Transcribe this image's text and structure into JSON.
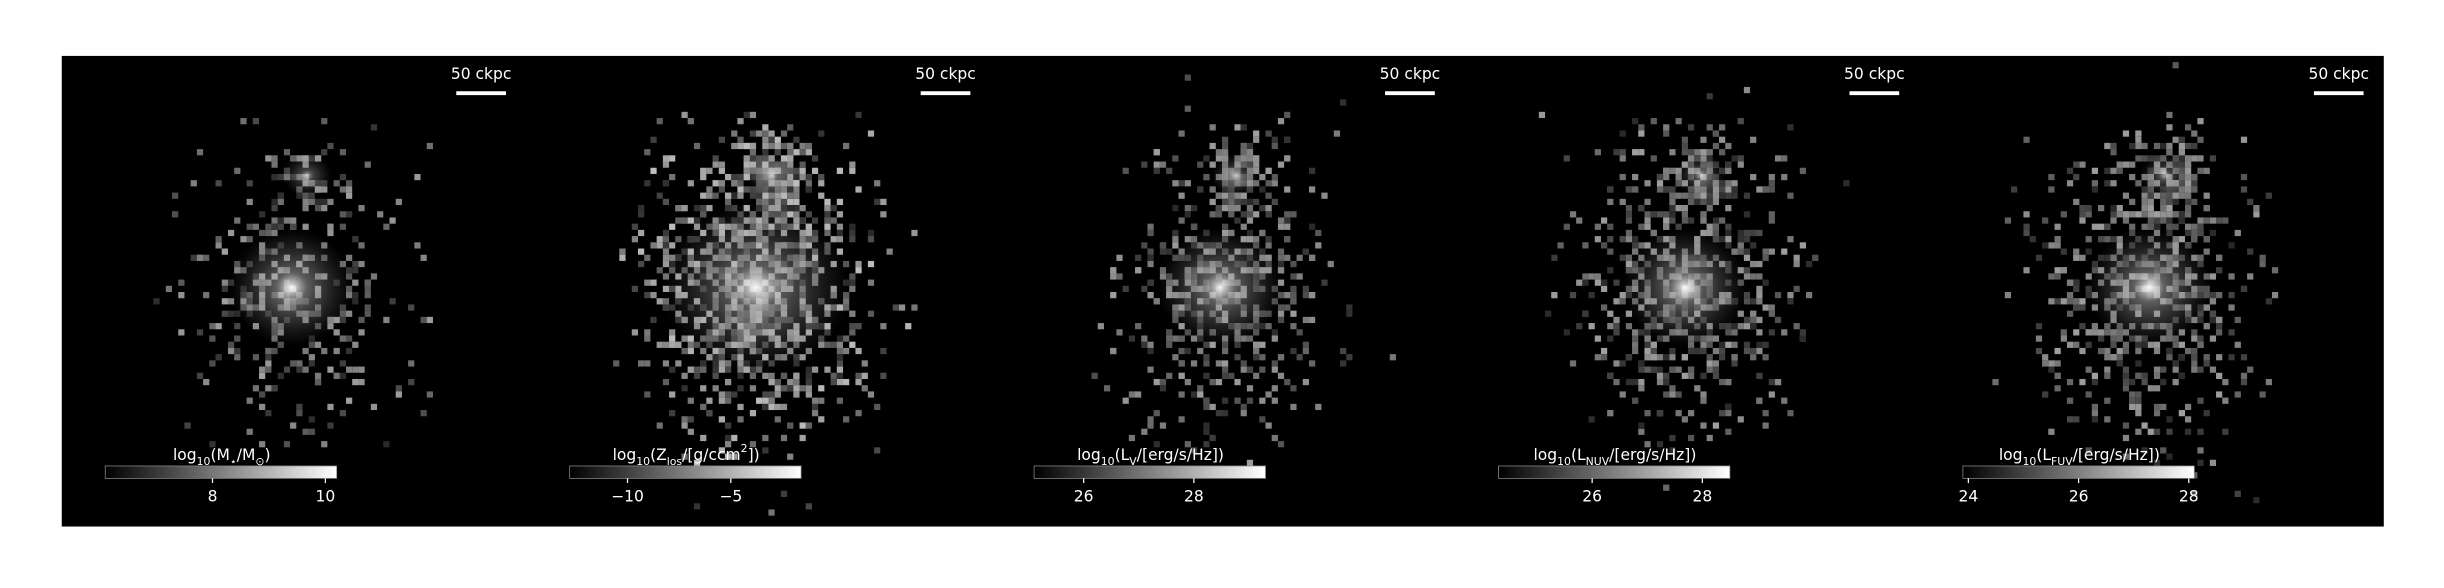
{
  "panels": [
    {
      "scale_bar": "50 ckpc",
      "colorbar": {
        "label": [
          {
            "text": "log"
          },
          {
            "text": "10",
            "sub": true
          },
          {
            "text": "(M"
          },
          {
            "text": "⋆",
            "sub": true
          },
          {
            "text": "/M"
          },
          {
            "text": "⊙",
            "sub": true
          },
          {
            "text": ")"
          }
        ],
        "lim": [
          6.1,
          10.2
        ],
        "ticks": [
          8,
          10
        ]
      }
    },
    {
      "scale_bar": "50 ckpc",
      "colorbar": {
        "label": [
          {
            "text": "log"
          },
          {
            "text": "10",
            "sub": true
          },
          {
            "text": "(Z"
          },
          {
            "text": "los",
            "sub": true
          },
          {
            "text": "/[g/ccm"
          },
          {
            "text": "2",
            "sup": true
          },
          {
            "text": "])"
          }
        ],
        "lim": [
          -12.8,
          -1.6
        ],
        "ticks": [
          {
            "value": -10,
            "label": "−10"
          },
          {
            "value": -5,
            "label": "−5"
          }
        ]
      }
    },
    {
      "scale_bar": "50 ckpc",
      "colorbar": {
        "label": [
          {
            "text": "log"
          },
          {
            "text": "10",
            "sub": true
          },
          {
            "text": "(L"
          },
          {
            "text": "V",
            "sub": true
          },
          {
            "text": "/[erg/s/Hz])"
          }
        ],
        "lim": [
          25.1,
          29.3
        ],
        "ticks": [
          26,
          28
        ]
      }
    },
    {
      "scale_bar": "50 ckpc",
      "colorbar": {
        "label": [
          {
            "text": "log"
          },
          {
            "text": "10",
            "sub": true
          },
          {
            "text": "(L"
          },
          {
            "text": "NUV",
            "sub": true
          },
          {
            "text": "/[erg/s/Hz])"
          }
        ],
        "lim": [
          24.3,
          28.5
        ],
        "ticks": [
          26,
          28
        ]
      }
    },
    {
      "scale_bar": "50 ckpc",
      "colorbar": {
        "label": [
          {
            "text": "log"
          },
          {
            "text": "10",
            "sub": true
          },
          {
            "text": "(L"
          },
          {
            "text": "FUV",
            "sub": true
          },
          {
            "text": "/[erg/s/Hz])"
          }
        ],
        "lim": [
          23.9,
          28.1
        ],
        "ticks": [
          24,
          26,
          28
        ]
      }
    }
  ]
}
